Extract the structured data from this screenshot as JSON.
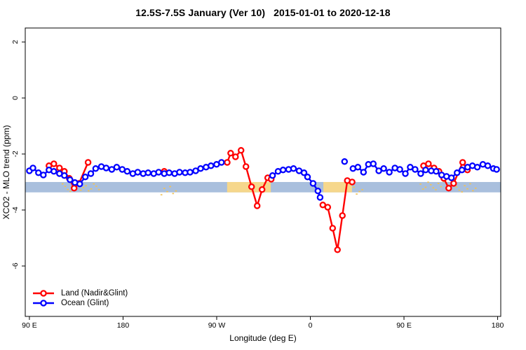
{
  "title": "12.5S-7.5S January (Ver 10)   2015-01-01 to 2020-12-18",
  "legend": [
    {
      "label": "Land (Nadir&Glint)",
      "color": "#ff0000"
    },
    {
      "label": "Ocean (Glint)",
      "color": "#0000ff"
    }
  ],
  "colors": {
    "land": "#ff0000",
    "ocean": "#0000ff",
    "band_blue": "#a9bfdd",
    "band_orange": "#f6d78c",
    "speckle": "#f2c255",
    "axis": "#000000"
  },
  "chart_data": {
    "type": "line",
    "title": "12.5S-7.5S January (Ver 10)   2015-01-01 to 2020-12-18",
    "xlabel": "Longitude (deg E)",
    "ylabel": "XCO2 - MLO trend (ppm)",
    "xlim": [
      86,
      543
    ],
    "ylim": [
      -7.8,
      2.5
    ],
    "grid": false,
    "legend_position": "bottom-left-inside",
    "x_ticks": [
      {
        "value": 90,
        "label": "90 E"
      },
      {
        "value": 180,
        "label": "180"
      },
      {
        "value": 270,
        "label": "90 W"
      },
      {
        "value": 360,
        "label": "0"
      },
      {
        "value": 450,
        "label": "90 E"
      },
      {
        "value": 540,
        "label": "180"
      }
    ],
    "y_ticks": [
      {
        "value": 2,
        "label": "2"
      },
      {
        "value": 0,
        "label": "0"
      },
      {
        "value": -2,
        "label": "-2"
      },
      {
        "value": -4,
        "label": "-4"
      },
      {
        "value": -6,
        "label": "-6"
      }
    ],
    "bands": {
      "blue_band": {
        "x_start": 86,
        "x_end": 543,
        "y_top": -3.0,
        "y_bottom": -3.37,
        "color": "#a9bfdd"
      },
      "orange_segments": [
        {
          "x_start": 280,
          "x_end": 322,
          "y_top": -3.0,
          "y_bottom": -3.37
        },
        {
          "x_start": 372.5,
          "x_end": 400,
          "y_top": -3.0,
          "y_bottom": -3.37
        }
      ],
      "orange_color": "#f6d78c"
    },
    "speckle_clusters": [
      {
        "x_start": 121,
        "x_end": 156,
        "y": -3.18
      },
      {
        "x_start": 216,
        "x_end": 230,
        "y": -3.3
      },
      {
        "x_start": 401,
        "x_end": 409,
        "y": -3.32
      },
      {
        "x_start": 465,
        "x_end": 492,
        "y": -3.12
      },
      {
        "x_start": 497,
        "x_end": 518,
        "y": -3.2
      }
    ],
    "series": [
      {
        "name": "Land (Nadir&Glint)",
        "color": "#ff0000",
        "marker": "open-circle",
        "segments": [
          [
            [
              108.8,
              -2.42
            ],
            [
              113.5,
              -2.35
            ],
            [
              118.9,
              -2.5
            ],
            [
              123.6,
              -2.62
            ],
            [
              128.3,
              -2.87
            ],
            [
              133.0,
              -3.22
            ],
            [
              137.7,
              -3.05
            ],
            [
              146.4,
              -2.3
            ]
          ],
          [
            [
              219.6,
              -2.62
            ]
          ],
          [
            [
              280.1,
              -2.3
            ],
            [
              283.4,
              -1.97
            ],
            [
              288.1,
              -2.1
            ],
            [
              293.4,
              -1.87
            ],
            [
              298.1,
              -2.45
            ],
            [
              303.5,
              -3.17
            ],
            [
              308.9,
              -3.85
            ],
            [
              313.6,
              -3.27
            ],
            [
              319.0,
              -2.85
            ],
            [
              322.4,
              -2.9
            ]
          ],
          [
            [
              372.0,
              -3.82
            ],
            [
              376.7,
              -3.9
            ],
            [
              381.4,
              -4.65
            ],
            [
              386.1,
              -5.42
            ],
            [
              390.8,
              -4.2
            ],
            [
              395.5,
              -2.95
            ],
            [
              400.2,
              -3.0
            ]
          ],
          [
            [
              468.8,
              -2.42
            ],
            [
              473.5,
              -2.35
            ],
            [
              478.9,
              -2.5
            ],
            [
              483.6,
              -2.62
            ],
            [
              488.3,
              -2.87
            ],
            [
              493.0,
              -3.22
            ],
            [
              497.7,
              -3.05
            ],
            [
              506.4,
              -2.3
            ],
            [
              511.0,
              -2.57
            ]
          ]
        ]
      },
      {
        "name": "Ocean (Glint)",
        "color": "#0000ff",
        "marker": "open-circle",
        "segments": [
          [
            [
              90,
              -2.6
            ],
            [
              93.4,
              -2.5
            ],
            [
              98.7,
              -2.67
            ],
            [
              103.4,
              -2.75
            ],
            [
              108.8,
              -2.57
            ],
            [
              113.5,
              -2.62
            ],
            [
              118.9,
              -2.7
            ],
            [
              123.6,
              -2.77
            ],
            [
              129,
              -2.92
            ],
            [
              133.7,
              -3.02
            ],
            [
              138.4,
              -3.07
            ],
            [
              143.7,
              -2.82
            ],
            [
              149,
              -2.7
            ],
            [
              153.7,
              -2.52
            ],
            [
              159.1,
              -2.45
            ],
            [
              163.8,
              -2.5
            ],
            [
              169.2,
              -2.55
            ],
            [
              173.9,
              -2.47
            ],
            [
              179.2,
              -2.55
            ],
            [
              184,
              -2.62
            ],
            [
              189.4,
              -2.7
            ],
            [
              194.1,
              -2.65
            ],
            [
              199.4,
              -2.7
            ],
            [
              204.1,
              -2.67
            ],
            [
              209.5,
              -2.7
            ],
            [
              214.2,
              -2.65
            ],
            [
              219.6,
              -2.7
            ],
            [
              224.3,
              -2.67
            ],
            [
              229.6,
              -2.7
            ],
            [
              234.3,
              -2.65
            ],
            [
              239.7,
              -2.67
            ],
            [
              244.4,
              -2.65
            ],
            [
              249.8,
              -2.6
            ],
            [
              254.5,
              -2.52
            ],
            [
              259.8,
              -2.47
            ],
            [
              264.5,
              -2.42
            ],
            [
              269.9,
              -2.37
            ],
            [
              274.6,
              -2.3
            ]
          ],
          [
            [
              323.7,
              -2.77
            ],
            [
              329,
              -2.62
            ],
            [
              333.8,
              -2.57
            ],
            [
              339.1,
              -2.55
            ],
            [
              343.8,
              -2.52
            ],
            [
              349.2,
              -2.6
            ],
            [
              353.9,
              -2.67
            ],
            [
              357.3,
              -2.82
            ],
            [
              362.6,
              -3.05
            ],
            [
              367.3,
              -3.32
            ],
            [
              369.4,
              -3.55
            ]
          ],
          [
            [
              392.9,
              -2.27
            ]
          ],
          [
            [
              401,
              -2.52
            ],
            [
              405.7,
              -2.47
            ],
            [
              411.1,
              -2.65
            ],
            [
              415.8,
              -2.37
            ],
            [
              420.5,
              -2.35
            ],
            [
              425.8,
              -2.6
            ],
            [
              430.5,
              -2.52
            ],
            [
              435.9,
              -2.65
            ],
            [
              441.3,
              -2.5
            ],
            [
              446,
              -2.55
            ],
            [
              451.3,
              -2.7
            ],
            [
              456,
              -2.47
            ],
            [
              460.7,
              -2.55
            ],
            [
              466.1,
              -2.7
            ],
            [
              470.8,
              -2.57
            ],
            [
              476.2,
              -2.6
            ],
            [
              480.9,
              -2.62
            ],
            [
              486.2,
              -2.75
            ],
            [
              490.9,
              -2.8
            ],
            [
              495.6,
              -2.85
            ],
            [
              501,
              -2.67
            ],
            [
              505.7,
              -2.57
            ],
            [
              511.1,
              -2.47
            ],
            [
              515.8,
              -2.42
            ],
            [
              520.5,
              -2.47
            ],
            [
              525.8,
              -2.37
            ],
            [
              530.5,
              -2.42
            ],
            [
              535.9,
              -2.52
            ],
            [
              539,
              -2.55
            ]
          ]
        ]
      }
    ]
  }
}
